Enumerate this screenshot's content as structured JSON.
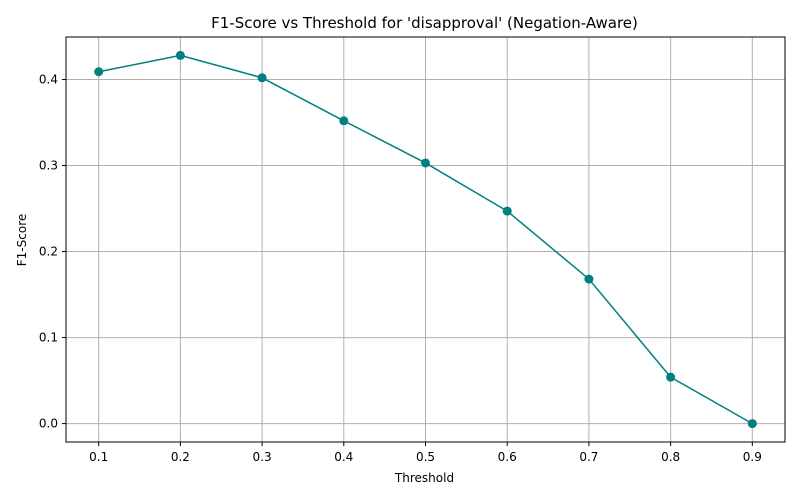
{
  "chart_data": {
    "type": "line",
    "title": "F1-Score vs Threshold for 'disapproval' (Negation-Aware)",
    "xlabel": "Threshold",
    "ylabel": "F1-Score",
    "x": [
      0.1,
      0.2,
      0.3,
      0.4,
      0.5,
      0.6,
      0.7,
      0.8,
      0.9
    ],
    "series": [
      {
        "values": [
          0.409,
          0.428,
          0.402,
          0.352,
          0.303,
          0.247,
          0.168,
          0.054,
          0.0
        ],
        "color": "#008080",
        "marker": "circle"
      }
    ],
    "x_ticks": [
      "0.1",
      "0.2",
      "0.3",
      "0.4",
      "0.5",
      "0.6",
      "0.7",
      "0.8",
      "0.9"
    ],
    "y_ticks": [
      "0.0",
      "0.1",
      "0.2",
      "0.3",
      "0.4"
    ],
    "xlim": [
      0.06,
      0.94
    ],
    "ylim": [
      -0.0214,
      0.4494
    ],
    "grid": true,
    "grid_color": "#b0b0b0"
  }
}
